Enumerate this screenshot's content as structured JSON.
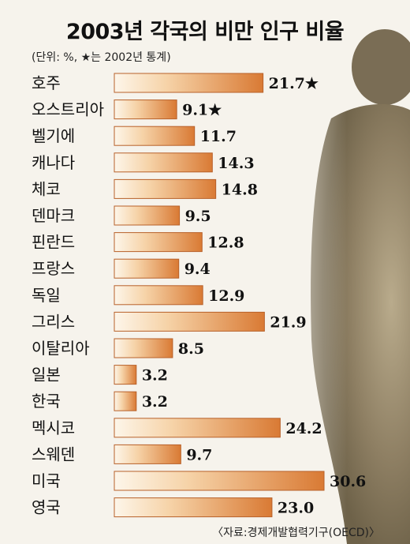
{
  "title": "2003년 각국의 비만 인구 비율",
  "subtitle": "(단위: %, ★는 2002년 통계)",
  "source": "〈자료:경제개발협력기구(OECD)〉",
  "colors": {
    "bar_start": "#fdf6ea",
    "bar_end": "#d97a34",
    "bar_border": "#b8612a",
    "background": "#f6f3ec"
  },
  "chart_data": {
    "type": "bar",
    "orientation": "horizontal",
    "title": "2003년 각국의 비만 인구 비율",
    "subtitle": "(단위: %, ★는 2002년 통계)",
    "categories": [
      "호주",
      "오스트리아",
      "벨기에",
      "캐나다",
      "체코",
      "덴마크",
      "핀란드",
      "프랑스",
      "독일",
      "그리스",
      "이탈리아",
      "일본",
      "한국",
      "멕시코",
      "스웨덴",
      "미국",
      "영국"
    ],
    "values": [
      21.7,
      9.1,
      11.7,
      14.3,
      14.8,
      9.5,
      12.8,
      9.4,
      12.9,
      21.9,
      8.5,
      3.2,
      3.2,
      24.2,
      9.7,
      30.6,
      23.0
    ],
    "value_labels": [
      "21.7★",
      "9.1★",
      "11.7",
      "14.3",
      "14.8",
      "9.5",
      "12.8",
      "9.4",
      "12.9",
      "21.9",
      "8.5",
      "3.2",
      "3.2",
      "24.2",
      "9.7",
      "30.6",
      "23.0"
    ],
    "xlim": [
      0,
      30.6
    ],
    "grid": false,
    "legend": "none"
  }
}
